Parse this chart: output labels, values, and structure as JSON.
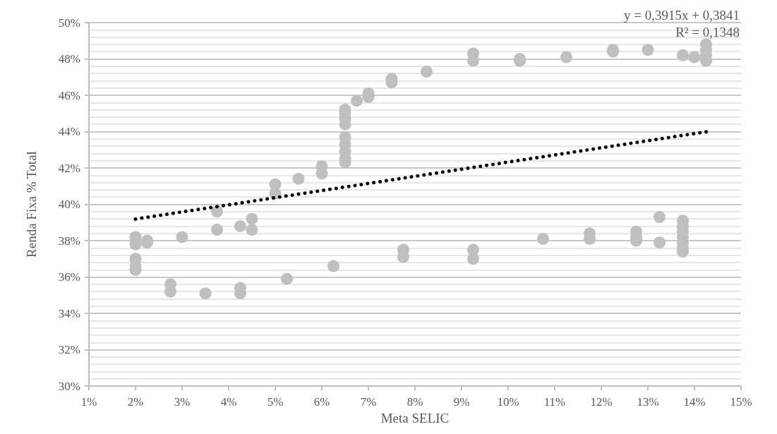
{
  "chart_data": {
    "type": "scatter",
    "xlabel": "Meta SELIC",
    "ylabel": "Renda Fixa % Total",
    "annotations": [
      "y = 0,3915x + 0,3841",
      "R² = 0,1348"
    ],
    "xlim": [
      1,
      15
    ],
    "xticks": [
      {
        "value": 1,
        "label": "1%"
      },
      {
        "value": 2,
        "label": "2%"
      },
      {
        "value": 3,
        "label": "3%"
      },
      {
        "value": 4,
        "label": "4%"
      },
      {
        "value": 5,
        "label": "5%"
      },
      {
        "value": 6,
        "label": "6%"
      },
      {
        "value": 7,
        "label": "7%"
      },
      {
        "value": 8,
        "label": "8%"
      },
      {
        "value": 9,
        "label": "9%"
      },
      {
        "value": 10,
        "label": "10%"
      },
      {
        "value": 11,
        "label": "11%"
      },
      {
        "value": 12,
        "label": "12%"
      },
      {
        "value": 13,
        "label": "13%"
      },
      {
        "value": 14,
        "label": "14%"
      },
      {
        "value": 15,
        "label": "15%"
      }
    ],
    "ylim": [
      30,
      50
    ],
    "yticks": [
      {
        "value": 30,
        "label": "30%"
      },
      {
        "value": 32,
        "label": "32%"
      },
      {
        "value": 34,
        "label": "34%"
      },
      {
        "value": 36,
        "label": "36%"
      },
      {
        "value": 38,
        "label": "38%"
      },
      {
        "value": 40,
        "label": "40%"
      },
      {
        "value": 42,
        "label": "42%"
      },
      {
        "value": 44,
        "label": "44%"
      },
      {
        "value": 46,
        "label": "46%"
      },
      {
        "value": 48,
        "label": "48%"
      },
      {
        "value": 50,
        "label": "50%"
      }
    ],
    "grid": "y",
    "series": [
      {
        "color": "#bfbfbf",
        "marker": "circle",
        "x": [
          2,
          2,
          2,
          2,
          2,
          2.25,
          2.25,
          2.75,
          2.75,
          3,
          3.5,
          3.75,
          3.75,
          4.25,
          4.25,
          4.25,
          4.5,
          4.5,
          5,
          5,
          5.25,
          5.5,
          6,
          6,
          6.25,
          6.5,
          6.5,
          6.5,
          6.5,
          6.5,
          6.5,
          6.5,
          6.5,
          6.5,
          6.75,
          7,
          7,
          7.5,
          7.5,
          7.75,
          7.75,
          8.25,
          9.25,
          9.25,
          9.25,
          9.25,
          10.25,
          10.25,
          10.75,
          11.25,
          11.75,
          11.75,
          12.25,
          12.25,
          12.75,
          12.75,
          12.75,
          13,
          13.25,
          13.25,
          13.75,
          13.75,
          13.75,
          13.75,
          13.75,
          13.75,
          13.75,
          13.75,
          14,
          14.25,
          14.25,
          14.25,
          14.25
        ],
        "values": [
          38.2,
          37.8,
          37.0,
          36.6,
          36.4,
          38.0,
          37.9,
          35.6,
          35.2,
          38.2,
          35.1,
          39.6,
          38.6,
          38.8,
          35.4,
          35.1,
          39.2,
          38.6,
          41.1,
          40.6,
          35.9,
          41.4,
          42.1,
          41.7,
          36.6,
          45.2,
          45.0,
          44.7,
          44.4,
          43.7,
          43.3,
          42.9,
          42.5,
          42.3,
          45.7,
          46.1,
          45.9,
          46.9,
          46.7,
          37.5,
          37.1,
          47.3,
          48.3,
          47.9,
          37.5,
          37.0,
          48.0,
          47.9,
          38.1,
          48.1,
          38.4,
          38.1,
          48.5,
          48.4,
          38.5,
          38.2,
          38.0,
          48.5,
          39.3,
          37.9,
          48.2,
          39.1,
          38.8,
          38.5,
          38.2,
          37.9,
          37.6,
          37.4,
          48.1,
          48.8,
          48.5,
          48.2,
          47.9
        ]
      },
      {
        "type": "line",
        "color": "#000000",
        "marker": "none",
        "line_style": "dotted",
        "x": [
          2,
          14.25
        ],
        "values": [
          39.19,
          43.99
        ]
      }
    ]
  }
}
